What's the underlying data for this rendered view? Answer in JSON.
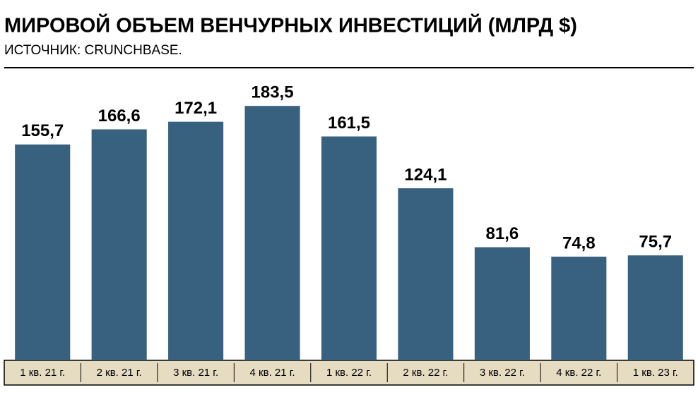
{
  "chart_data": {
    "type": "bar",
    "title": "МИРОВОЙ ОБЪЕМ ВЕНЧУРНЫХ ИНВЕСТИЦИЙ (МЛРД $)",
    "subtitle": "ИСТОЧНИК: CRUNCHBASE.",
    "categories": [
      "1 кв. 21 г.",
      "2 кв. 21 г.",
      "3 кв. 21 г.",
      "4 кв. 21 г.",
      "1 кв. 22 г.",
      "2 кв. 22 г.",
      "3 кв. 22 г.",
      "4 кв. 22 г.",
      "1 кв. 23 г."
    ],
    "values": [
      155.7,
      166.6,
      172.1,
      183.5,
      161.5,
      124.1,
      81.6,
      74.8,
      75.7
    ],
    "value_labels": [
      "155,7",
      "166,6",
      "172,1",
      "183,5",
      "161,5",
      "124,1",
      "81,6",
      "74,8",
      "75,7"
    ],
    "color": "#38607f"
  }
}
